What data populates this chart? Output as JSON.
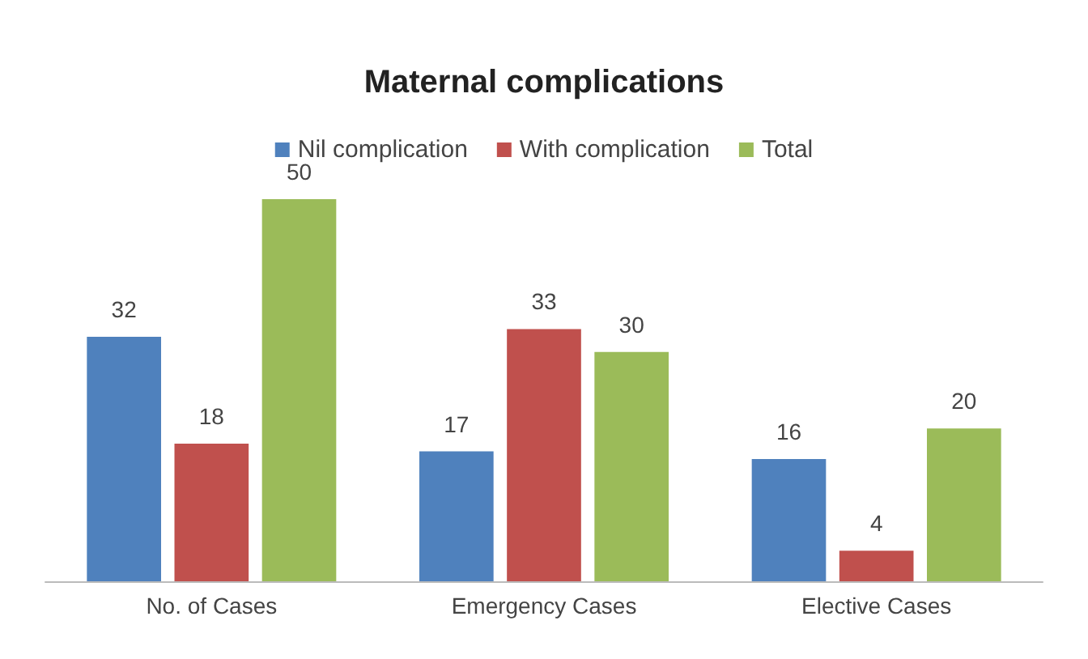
{
  "chart_data": {
    "type": "bar",
    "title": "Maternal complications",
    "categories": [
      "No. of Cases",
      "Emergency Cases",
      "Elective Cases"
    ],
    "series": [
      {
        "name": "Nil complication",
        "color": "#4f81bd",
        "values": [
          32,
          17,
          16
        ]
      },
      {
        "name": "With complication",
        "color": "#c0504d",
        "values": [
          18,
          33,
          4
        ]
      },
      {
        "name": "Total",
        "color": "#9bbb59",
        "values": [
          50,
          30,
          20
        ]
      }
    ],
    "data_labels": true,
    "legend": "top",
    "grid": false,
    "tick_labels": "x"
  }
}
